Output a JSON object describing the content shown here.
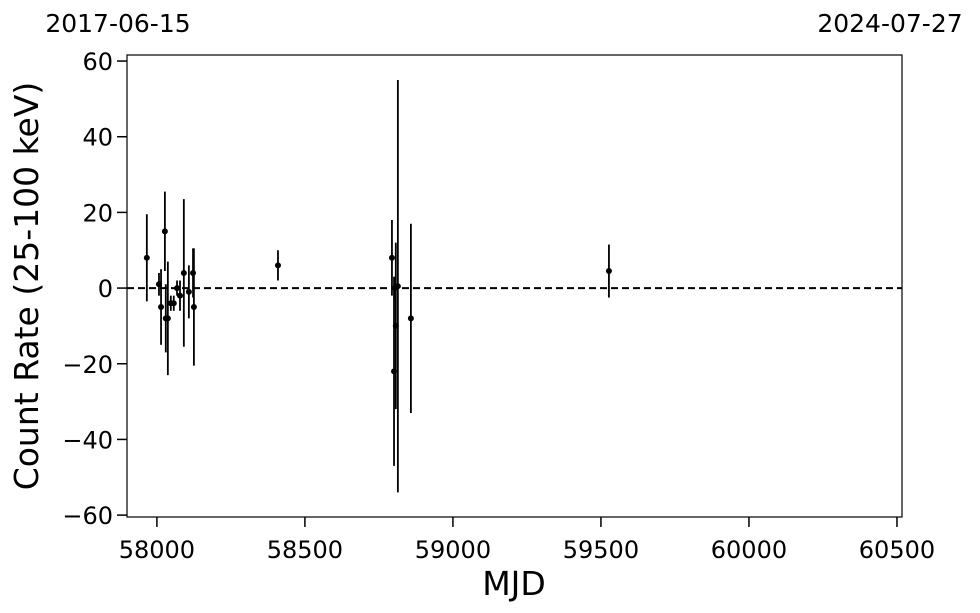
{
  "chart_data": {
    "type": "errorbar",
    "xlabel": "MJD",
    "ylabel": "Count Rate (25-100 keV)",
    "top_labels": [
      "2017-06-15",
      "2024-07-27"
    ],
    "x": [
      57966,
      58007,
      58014,
      58027,
      58030,
      58037,
      58047,
      58057,
      58068,
      58078,
      58091,
      58108,
      58122,
      58125,
      58409,
      58794,
      58801,
      58804,
      58807,
      58814,
      58858,
      59527
    ],
    "series": [
      {
        "color": "#000000",
        "values": [
          8,
          1,
          -5,
          15,
          -8,
          -8,
          -4,
          -4,
          0,
          -2,
          4,
          -1,
          4,
          -5,
          6,
          8,
          -22,
          0,
          -10,
          0.5,
          -8,
          4.5
        ],
        "errors": [
          11.5,
          3,
          10,
          10.5,
          9,
          15,
          2,
          2,
          2,
          4,
          19.5,
          7,
          6.5,
          15.5,
          4,
          10,
          25,
          3,
          22,
          54.5,
          25,
          7
        ]
      }
    ],
    "reference_line": 0,
    "xlim": [
      57899,
      60517
    ],
    "xticks": [
      58000,
      58500,
      59000,
      59500,
      60000,
      60500
    ],
    "ylim": [
      -60.5,
      61.6
    ],
    "yticks": [
      {
        "value": -60,
        "label": "−60"
      },
      {
        "value": -40,
        "label": "−40"
      },
      {
        "value": -20,
        "label": "−20"
      },
      0,
      20,
      40,
      60
    ]
  }
}
